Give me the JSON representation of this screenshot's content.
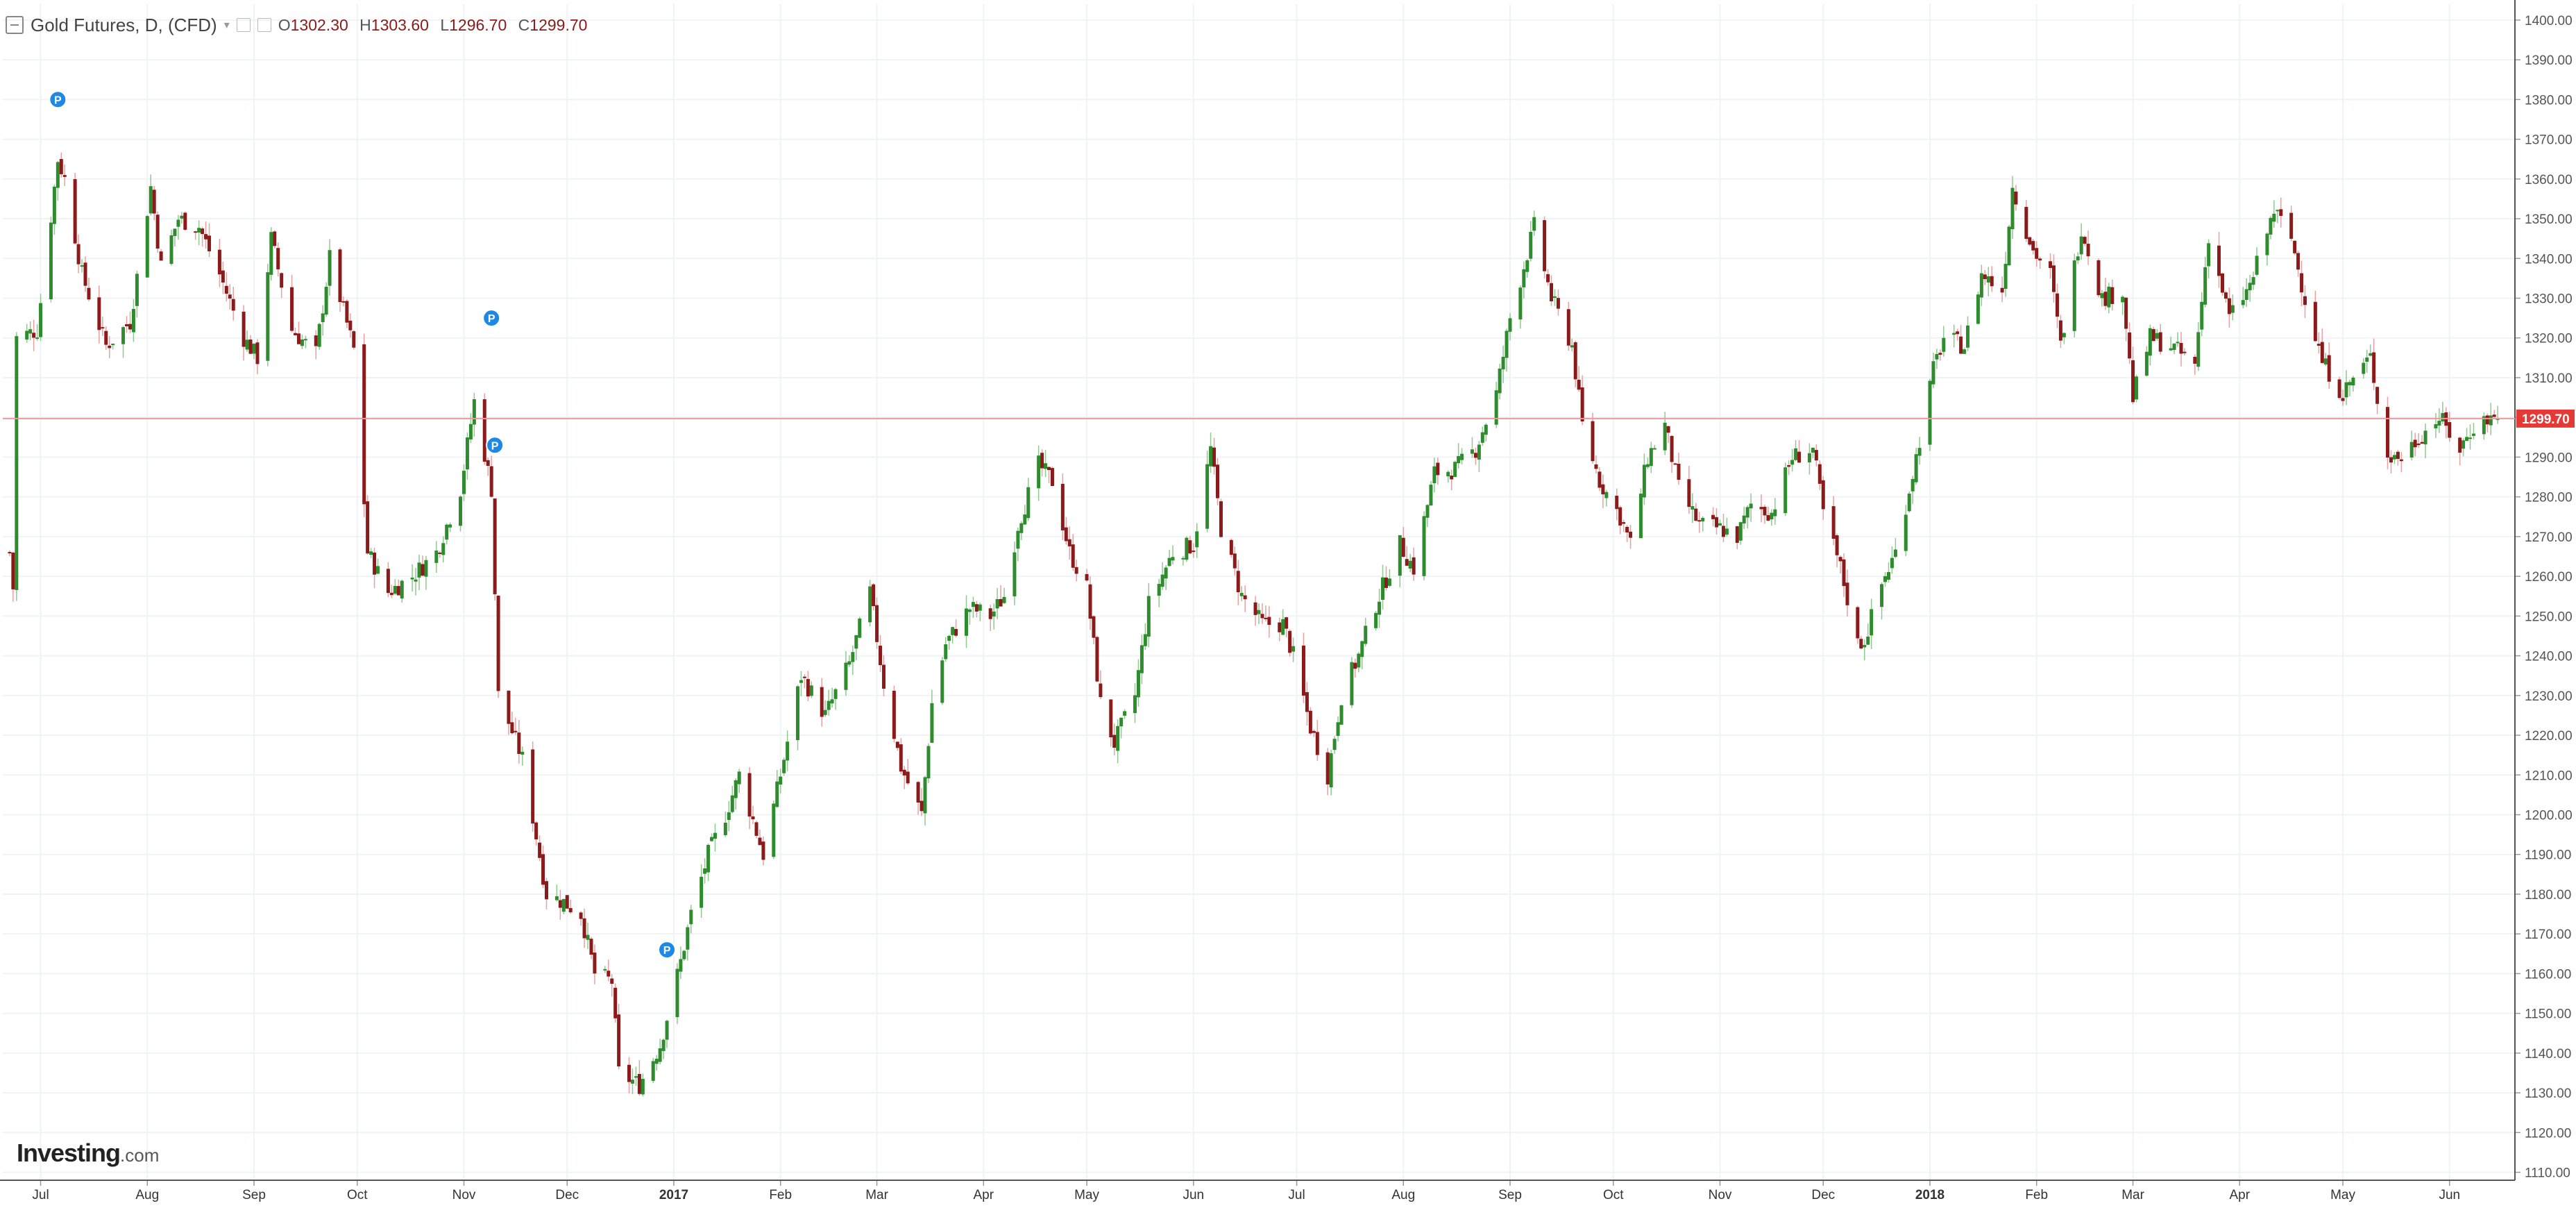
{
  "header": {
    "symbol_title": "Gold Futures, D, (CFD)",
    "open_label": "O",
    "open_value": "1302.30",
    "high_label": "H",
    "high_value": "1303.60",
    "low_label": "L",
    "low_value": "1296.70",
    "close_label": "C",
    "close_value": "1299.70"
  },
  "branding": {
    "logo_main": "Investing",
    "logo_domain": ".com"
  },
  "colors": {
    "up": "#2e8b2e",
    "down": "#8b1a1a",
    "price_line": "#ef9a9a",
    "price_tag_bg": "#e53935",
    "marker": "#1e88e5",
    "grid": "#f0f3f6",
    "axis_text": "#555555"
  },
  "chart_data": {
    "type": "candlestick",
    "title": "Gold Futures, D, (CFD)",
    "y_axis": {
      "ylim": [
        1108,
        1404
      ],
      "ticks": [
        1110,
        1120,
        1130,
        1140,
        1150,
        1160,
        1170,
        1180,
        1190,
        1200,
        1210,
        1220,
        1230,
        1240,
        1250,
        1260,
        1270,
        1280,
        1290,
        1300,
        1310,
        1320,
        1330,
        1340,
        1350,
        1360,
        1370,
        1380,
        1390,
        1400
      ],
      "tick_labels": [
        "1110.00",
        "1120.00",
        "1130.00",
        "1140.00",
        "1150.00",
        "1160.00",
        "1170.00",
        "1180.00",
        "1190.00",
        "1200.00",
        "1210.00",
        "1220.00",
        "1230.00",
        "1240.00",
        "1250.00",
        "1260.00",
        "1270.00",
        "1280.00",
        "1290.00",
        "1300.00",
        "1310.00",
        "1320.00",
        "1330.00",
        "1340.00",
        "1350.00",
        "1360.00",
        "1370.00",
        "1380.00",
        "1390.00",
        "1400.00"
      ]
    },
    "x_axis": {
      "range": [
        "2016-06-20",
        "2018-06-20"
      ],
      "ticks": [
        {
          "date": "2016-07-01",
          "label": "Jul",
          "bold": false
        },
        {
          "date": "2016-08-01",
          "label": "Aug",
          "bold": false
        },
        {
          "date": "2016-09-01",
          "label": "Sep",
          "bold": false
        },
        {
          "date": "2016-10-01",
          "label": "Oct",
          "bold": false
        },
        {
          "date": "2016-11-01",
          "label": "Nov",
          "bold": false
        },
        {
          "date": "2016-12-01",
          "label": "Dec",
          "bold": false
        },
        {
          "date": "2017-01-01",
          "label": "2017",
          "bold": true
        },
        {
          "date": "2017-02-01",
          "label": "Feb",
          "bold": false
        },
        {
          "date": "2017-03-01",
          "label": "Mar",
          "bold": false
        },
        {
          "date": "2017-04-01",
          "label": "Apr",
          "bold": false
        },
        {
          "date": "2017-05-01",
          "label": "May",
          "bold": false
        },
        {
          "date": "2017-06-01",
          "label": "Jun",
          "bold": false
        },
        {
          "date": "2017-07-01",
          "label": "Jul",
          "bold": false
        },
        {
          "date": "2017-08-01",
          "label": "Aug",
          "bold": false
        },
        {
          "date": "2017-09-01",
          "label": "Sep",
          "bold": false
        },
        {
          "date": "2017-10-01",
          "label": "Oct",
          "bold": false
        },
        {
          "date": "2017-11-01",
          "label": "Nov",
          "bold": false
        },
        {
          "date": "2017-12-01",
          "label": "Dec",
          "bold": false
        },
        {
          "date": "2018-01-01",
          "label": "2018",
          "bold": true
        },
        {
          "date": "2018-02-01",
          "label": "Feb",
          "bold": false
        },
        {
          "date": "2018-03-01",
          "label": "Mar",
          "bold": false
        },
        {
          "date": "2018-04-01",
          "label": "Apr",
          "bold": false
        },
        {
          "date": "2018-05-01",
          "label": "May",
          "bold": false
        },
        {
          "date": "2018-06-01",
          "label": "Jun",
          "bold": false
        }
      ]
    },
    "last_price": 1299.7,
    "last_price_label": "1299.70",
    "grid": true,
    "markers": [
      {
        "date": "2016-07-06",
        "price": 1380,
        "label": "P"
      },
      {
        "date": "2016-11-09",
        "price": 1325,
        "label": "P"
      },
      {
        "date": "2016-11-10",
        "price": 1293,
        "label": "P"
      },
      {
        "date": "2016-12-30",
        "price": 1166,
        "label": "P"
      }
    ],
    "series_path": [
      [
        "2016-06-22",
        1266
      ],
      [
        "2016-06-23",
        1257
      ],
      [
        "2016-06-24",
        1320
      ],
      [
        "2016-06-30",
        1322
      ],
      [
        "2016-07-06",
        1365
      ],
      [
        "2016-07-08",
        1360
      ],
      [
        "2016-07-13",
        1336
      ],
      [
        "2016-07-20",
        1318
      ],
      [
        "2016-07-27",
        1324
      ],
      [
        "2016-08-02",
        1358
      ],
      [
        "2016-08-05",
        1338
      ],
      [
        "2016-08-10",
        1350
      ],
      [
        "2016-08-16",
        1348
      ],
      [
        "2016-08-22",
        1336
      ],
      [
        "2016-08-29",
        1320
      ],
      [
        "2016-09-02",
        1315
      ],
      [
        "2016-09-06",
        1345
      ],
      [
        "2016-09-12",
        1322
      ],
      [
        "2016-09-19",
        1316
      ],
      [
        "2016-09-23",
        1340
      ],
      [
        "2016-09-30",
        1317
      ],
      [
        "2016-10-04",
        1266
      ],
      [
        "2016-10-10",
        1256
      ],
      [
        "2016-10-17",
        1260
      ],
      [
        "2016-10-24",
        1266
      ],
      [
        "2016-10-31",
        1282
      ],
      [
        "2016-11-04",
        1304
      ],
      [
        "2016-11-09",
        1282
      ],
      [
        "2016-11-11",
        1230
      ],
      [
        "2016-11-18",
        1214
      ],
      [
        "2016-11-25",
        1180
      ],
      [
        "2016-11-30",
        1178
      ],
      [
        "2016-12-05",
        1175
      ],
      [
        "2016-12-09",
        1160
      ],
      [
        "2016-12-14",
        1158
      ],
      [
        "2016-12-16",
        1135
      ],
      [
        "2016-12-22",
        1132
      ],
      [
        "2016-12-28",
        1142
      ],
      [
        "2017-01-03",
        1163
      ],
      [
        "2017-01-06",
        1175
      ],
      [
        "2017-01-11",
        1190
      ],
      [
        "2017-01-16",
        1200
      ],
      [
        "2017-01-20",
        1210
      ],
      [
        "2017-01-27",
        1190
      ],
      [
        "2017-02-01",
        1210
      ],
      [
        "2017-02-07",
        1235
      ],
      [
        "2017-02-14",
        1225
      ],
      [
        "2017-02-21",
        1238
      ],
      [
        "2017-02-27",
        1256
      ],
      [
        "2017-03-03",
        1233
      ],
      [
        "2017-03-08",
        1212
      ],
      [
        "2017-03-14",
        1200
      ],
      [
        "2017-03-17",
        1228
      ],
      [
        "2017-03-21",
        1243
      ],
      [
        "2017-03-28",
        1252
      ],
      [
        "2017-04-03",
        1250
      ],
      [
        "2017-04-07",
        1255
      ],
      [
        "2017-04-11",
        1273
      ],
      [
        "2017-04-17",
        1288
      ],
      [
        "2017-04-21",
        1284
      ],
      [
        "2017-04-26",
        1266
      ],
      [
        "2017-05-01",
        1257
      ],
      [
        "2017-05-05",
        1228
      ],
      [
        "2017-05-09",
        1218
      ],
      [
        "2017-05-15",
        1230
      ],
      [
        "2017-05-19",
        1253
      ],
      [
        "2017-05-26",
        1266
      ],
      [
        "2017-06-01",
        1268
      ],
      [
        "2017-06-06",
        1292
      ],
      [
        "2017-06-09",
        1272
      ],
      [
        "2017-06-15",
        1255
      ],
      [
        "2017-06-21",
        1248
      ],
      [
        "2017-06-27",
        1248
      ],
      [
        "2017-06-30",
        1240
      ],
      [
        "2017-07-05",
        1222
      ],
      [
        "2017-07-10",
        1210
      ],
      [
        "2017-07-14",
        1230
      ],
      [
        "2017-07-19",
        1240
      ],
      [
        "2017-07-24",
        1253
      ],
      [
        "2017-07-31",
        1268
      ],
      [
        "2017-08-04",
        1262
      ],
      [
        "2017-08-10",
        1286
      ],
      [
        "2017-08-16",
        1287
      ],
      [
        "2017-08-22",
        1292
      ],
      [
        "2017-08-28",
        1306
      ],
      [
        "2017-09-01",
        1325
      ],
      [
        "2017-09-05",
        1338
      ],
      [
        "2017-09-08",
        1348
      ],
      [
        "2017-09-13",
        1330
      ],
      [
        "2017-09-19",
        1318
      ],
      [
        "2017-09-22",
        1298
      ],
      [
        "2017-09-27",
        1284
      ],
      [
        "2017-10-03",
        1275
      ],
      [
        "2017-10-06",
        1268
      ],
      [
        "2017-10-11",
        1290
      ],
      [
        "2017-10-16",
        1298
      ],
      [
        "2017-10-20",
        1282
      ],
      [
        "2017-10-26",
        1273
      ],
      [
        "2017-11-01",
        1272
      ],
      [
        "2017-11-06",
        1270
      ],
      [
        "2017-11-10",
        1278
      ],
      [
        "2017-11-16",
        1276
      ],
      [
        "2017-11-22",
        1290
      ],
      [
        "2017-11-28",
        1292
      ],
      [
        "2017-12-01",
        1276
      ],
      [
        "2017-12-06",
        1262
      ],
      [
        "2017-12-11",
        1243
      ],
      [
        "2017-12-13",
        1244
      ],
      [
        "2017-12-18",
        1258
      ],
      [
        "2017-12-22",
        1266
      ],
      [
        "2017-12-28",
        1290
      ],
      [
        "2018-01-02",
        1312
      ],
      [
        "2018-01-05",
        1320
      ],
      [
        "2018-01-11",
        1318
      ],
      [
        "2018-01-16",
        1336
      ],
      [
        "2018-01-22",
        1332
      ],
      [
        "2018-01-25",
        1358
      ],
      [
        "2018-01-31",
        1342
      ],
      [
        "2018-02-05",
        1336
      ],
      [
        "2018-02-08",
        1318
      ],
      [
        "2018-02-14",
        1348
      ],
      [
        "2018-02-20",
        1330
      ],
      [
        "2018-02-26",
        1332
      ],
      [
        "2018-03-01",
        1305
      ],
      [
        "2018-03-06",
        1320
      ],
      [
        "2018-03-12",
        1318
      ],
      [
        "2018-03-19",
        1313
      ],
      [
        "2018-03-23",
        1346
      ],
      [
        "2018-03-29",
        1325
      ],
      [
        "2018-04-04",
        1333
      ],
      [
        "2018-04-11",
        1352
      ],
      [
        "2018-04-16",
        1345
      ],
      [
        "2018-04-20",
        1330
      ],
      [
        "2018-04-25",
        1314
      ],
      [
        "2018-05-01",
        1306
      ],
      [
        "2018-05-04",
        1310
      ],
      [
        "2018-05-09",
        1315
      ],
      [
        "2018-05-14",
        1290
      ],
      [
        "2018-05-18",
        1290
      ],
      [
        "2018-05-23",
        1295
      ],
      [
        "2018-05-29",
        1300
      ],
      [
        "2018-06-04",
        1292
      ],
      [
        "2018-06-08",
        1298
      ],
      [
        "2018-06-13",
        1300
      ],
      [
        "2018-06-15",
        1299.7
      ]
    ]
  }
}
